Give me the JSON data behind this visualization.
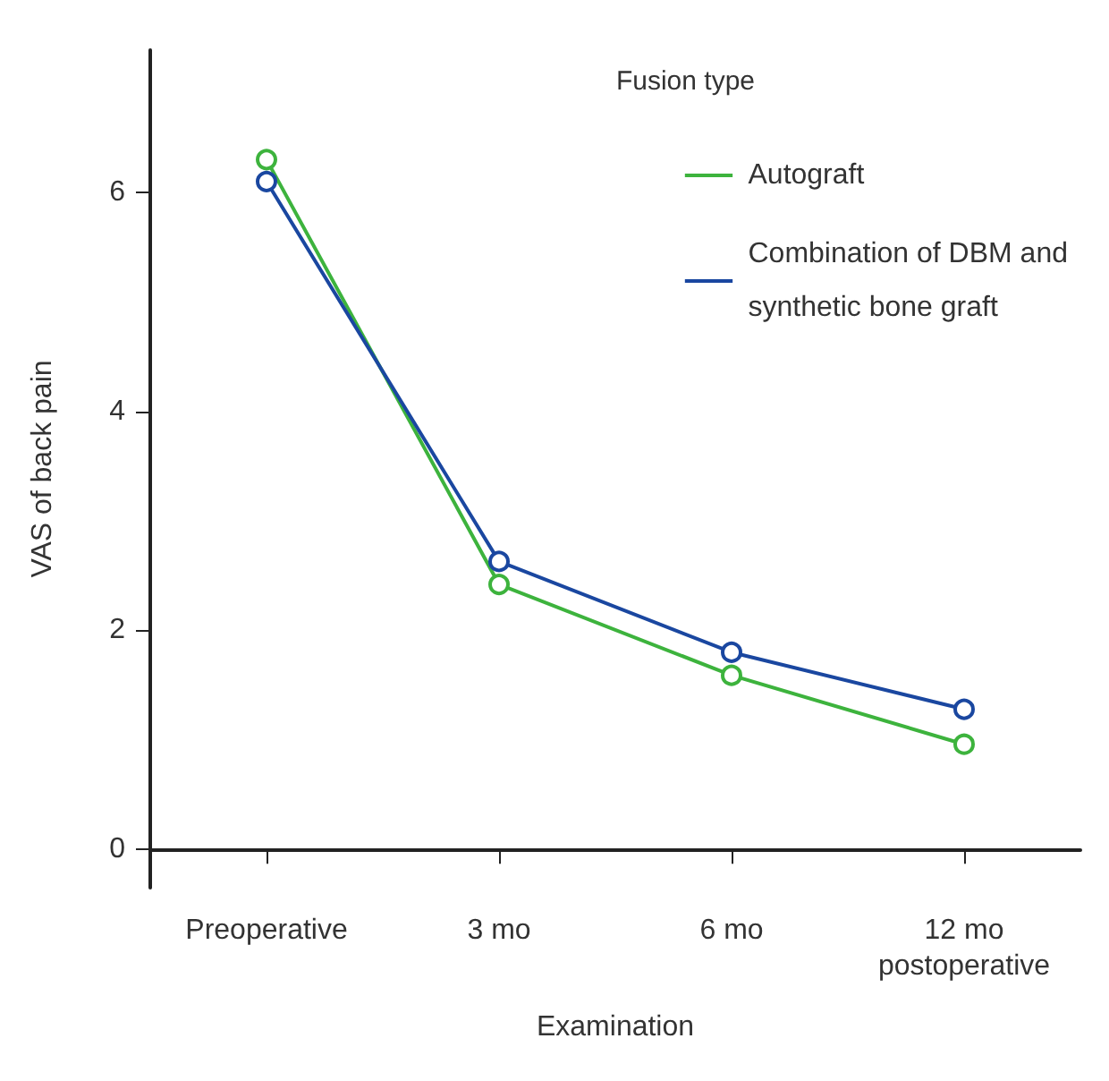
{
  "chart_data": {
    "type": "line",
    "xlabel": "Examination",
    "ylabel": "VAS of back pain",
    "legend_title": "Fusion type",
    "categories": [
      "Preoperative",
      "3 mo",
      "6 mo",
      "12 mo\npostoperative"
    ],
    "series": [
      {
        "name": "Autograft",
        "color": "#3db33d",
        "values": [
          6.3,
          2.42,
          1.59,
          0.96
        ]
      },
      {
        "name": "Combination of DBM and\nsynthetic bone graft",
        "color": "#1a47a0",
        "values": [
          6.1,
          2.63,
          1.8,
          1.28
        ]
      }
    ],
    "ylim": [
      -0.35,
      7.3
    ],
    "yticks": [
      0,
      2,
      4,
      6
    ],
    "grid": false,
    "legend": "top right",
    "marker": "circle",
    "line_style": "solid"
  }
}
